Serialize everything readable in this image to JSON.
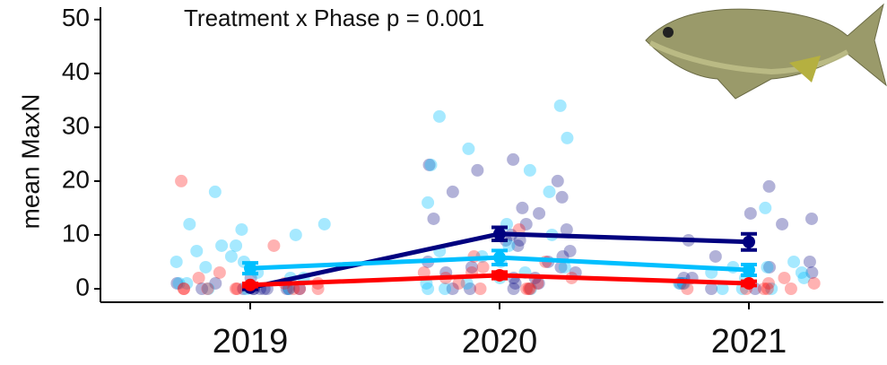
{
  "chart_data": {
    "type": "line",
    "annotation": "Treatment x Phase p = 0.001",
    "y_label": "mean MaxN",
    "categories": [
      "2019",
      "2020",
      "2021"
    ],
    "ylim": [
      -2.5,
      52.3
    ],
    "yticks": [
      0,
      10,
      20,
      30,
      40,
      50
    ],
    "series": [
      {
        "color": "#00007f",
        "values": [
          0.2,
          10.2,
          8.7
        ],
        "errors": [
          0.3,
          1.2,
          1.5
        ],
        "points": [
          [
            0,
            0,
            0,
            0,
            1,
            0,
            0,
            2,
            0,
            0,
            1,
            0,
            0
          ],
          [
            24,
            23,
            22,
            20,
            18,
            17,
            15,
            14,
            13,
            12,
            11,
            10,
            9,
            9,
            8,
            7,
            6,
            5,
            5,
            4,
            4,
            3,
            3,
            2,
            2,
            1,
            1,
            0,
            0,
            0
          ],
          [
            19,
            14,
            13,
            12,
            9,
            6,
            5,
            4,
            3,
            2,
            2,
            1,
            1,
            0,
            0
          ]
        ]
      },
      {
        "color": "#00bfff",
        "values": [
          3.8,
          5.8,
          3.5
        ],
        "errors": [
          1.0,
          1.3,
          1.0
        ],
        "points": [
          [
            18,
            12,
            12,
            11,
            10,
            8,
            8,
            7,
            6,
            5,
            5,
            4,
            3,
            2,
            2,
            1,
            1,
            0,
            0,
            0
          ],
          [
            34,
            32,
            28,
            26,
            23,
            22,
            18,
            16,
            12,
            10,
            8,
            7,
            6,
            5,
            4,
            3,
            2,
            1,
            1,
            0,
            0,
            0
          ],
          [
            15,
            5,
            4,
            4,
            3,
            3,
            2,
            2,
            1,
            1,
            0,
            0,
            0
          ]
        ]
      },
      {
        "color": "#ff0000",
        "values": [
          0.7,
          2.5,
          1.0
        ],
        "errors": [
          0.3,
          0.6,
          0.4
        ],
        "points": [
          [
            20,
            8,
            3,
            2,
            1,
            1,
            0,
            0,
            0,
            0,
            0,
            0,
            0,
            0
          ],
          [
            11,
            6,
            5,
            4,
            3,
            3,
            2,
            2,
            1,
            1,
            0,
            0,
            0,
            0
          ],
          [
            2,
            1,
            1,
            0,
            0,
            0,
            0,
            0
          ]
        ]
      }
    ]
  }
}
